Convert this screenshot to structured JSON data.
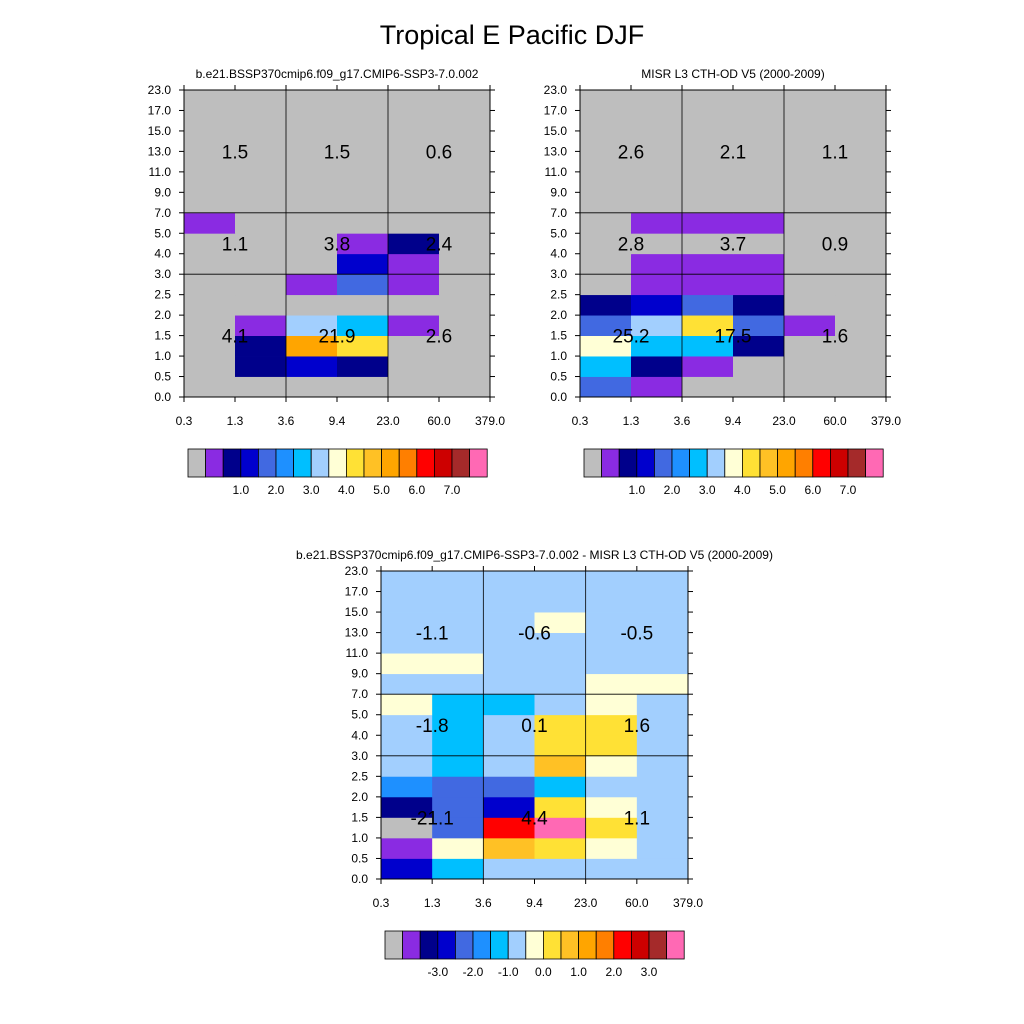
{
  "figure": {
    "title": "Tropical E Pacific DJF"
  },
  "palette": {
    "names": [
      "gray",
      "purple",
      "navy",
      "mediumblue",
      "royalblue",
      "dodgerblue",
      "deepskyblue",
      "lightskyblue",
      "lightyellow",
      "gold",
      "goldenrod",
      "orange",
      "darkorange",
      "red",
      "firebrick",
      "brown",
      "pink"
    ],
    "colors": [
      "#bebebe",
      "#8a2be2",
      "#00008b",
      "#0000cd",
      "#4169e1",
      "#1e90ff",
      "#00bfff",
      "#a2cffe",
      "#ffffd6",
      "#ffe135",
      "#ffc125",
      "#ffa500",
      "#ff7f00",
      "#ff0000",
      "#cd0000",
      "#a52a2a",
      "#ff69b4"
    ]
  },
  "axes": {
    "x_ticks": [
      "0.3",
      "1.3",
      "3.6",
      "9.4",
      "23.0",
      "60.0",
      "379.0"
    ],
    "y_ticks": [
      "0.0",
      "0.5",
      "1.0",
      "1.5",
      "2.0",
      "2.5",
      "3.0",
      "4.0",
      "5.0",
      "7.0",
      "9.0",
      "11.0",
      "13.0",
      "15.0",
      "17.0",
      "23.0"
    ]
  },
  "chart_data": [
    {
      "type": "heatmap",
      "title": "b.e21.BSSP370cmip6.f09_g17.CMIP6-SSP3-7.0.002",
      "x_bins": [
        "0.3",
        "1.3",
        "3.6",
        "9.4",
        "23.0",
        "60.0",
        "379.0"
      ],
      "y_bins": [
        "0.0",
        "0.5",
        "1.0",
        "1.5",
        "2.0",
        "2.5",
        "3.0",
        "4.0",
        "5.0",
        "7.0",
        "9.0",
        "11.0",
        "13.0",
        "15.0",
        "17.0",
        "23.0"
      ],
      "cells": [
        [
          0,
          0,
          0,
          0,
          0,
          0
        ],
        [
          0,
          2,
          3,
          2,
          0,
          0
        ],
        [
          0,
          2,
          11,
          9,
          0,
          0
        ],
        [
          0,
          1,
          7,
          6,
          1,
          0
        ],
        [
          0,
          0,
          0,
          0,
          0,
          0
        ],
        [
          0,
          0,
          1,
          4,
          1,
          0
        ],
        [
          0,
          0,
          0,
          3,
          1,
          0
        ],
        [
          0,
          0,
          0,
          1,
          2,
          0
        ],
        [
          1,
          0,
          0,
          0,
          0,
          0
        ],
        [
          0,
          0,
          0,
          0,
          0,
          0
        ],
        [
          0,
          0,
          0,
          0,
          0,
          0
        ],
        [
          0,
          0,
          0,
          0,
          0,
          0
        ],
        [
          0,
          0,
          0,
          0,
          0,
          0
        ],
        [
          0,
          0,
          0,
          0,
          0,
          0
        ],
        [
          0,
          0,
          0,
          0,
          0,
          0
        ]
      ],
      "group_totals": [
        [
          "1.5",
          "1.5",
          "0.6"
        ],
        [
          "1.1",
          "3.8",
          "2.4"
        ],
        [
          "4.1",
          "21.9",
          "2.6"
        ]
      ],
      "colorbar_labels": [
        "1.0",
        "2.0",
        "3.0",
        "4.0",
        "5.0",
        "6.0",
        "7.0"
      ]
    },
    {
      "type": "heatmap",
      "title": "MISR L3 CTH-OD V5 (2000-2009)",
      "x_bins": [
        "0.3",
        "1.3",
        "3.6",
        "9.4",
        "23.0",
        "60.0",
        "379.0"
      ],
      "y_bins": [
        "0.0",
        "0.5",
        "1.0",
        "1.5",
        "2.0",
        "2.5",
        "3.0",
        "4.0",
        "5.0",
        "7.0",
        "9.0",
        "11.0",
        "13.0",
        "15.0",
        "17.0",
        "23.0"
      ],
      "cells": [
        [
          4,
          1,
          0,
          0,
          0,
          0
        ],
        [
          6,
          2,
          1,
          0,
          0,
          0
        ],
        [
          8,
          6,
          6,
          2,
          0,
          0
        ],
        [
          4,
          7,
          9,
          4,
          1,
          0
        ],
        [
          2,
          3,
          4,
          2,
          0,
          0
        ],
        [
          0,
          1,
          1,
          1,
          0,
          0
        ],
        [
          0,
          1,
          1,
          1,
          0,
          0
        ],
        [
          0,
          0,
          0,
          0,
          0,
          0
        ],
        [
          0,
          1,
          1,
          1,
          0,
          0
        ],
        [
          0,
          0,
          0,
          0,
          0,
          0
        ],
        [
          0,
          0,
          0,
          0,
          0,
          0
        ],
        [
          0,
          0,
          0,
          0,
          0,
          0
        ],
        [
          0,
          0,
          0,
          0,
          0,
          0
        ],
        [
          0,
          0,
          0,
          0,
          0,
          0
        ],
        [
          0,
          0,
          0,
          0,
          0,
          0
        ]
      ],
      "group_totals": [
        [
          "2.6",
          "2.1",
          "1.1"
        ],
        [
          "2.8",
          "3.7",
          "0.9"
        ],
        [
          "25.2",
          "17.5",
          "1.6"
        ]
      ],
      "colorbar_labels": [
        "1.0",
        "2.0",
        "3.0",
        "4.0",
        "5.0",
        "6.0",
        "7.0"
      ]
    },
    {
      "type": "heatmap",
      "title": "b.e21.BSSP370cmip6.f09_g17.CMIP6-SSP3-7.0.002 - MISR L3 CTH-OD V5 (2000-2009)",
      "x_bins": [
        "0.3",
        "1.3",
        "3.6",
        "9.4",
        "23.0",
        "60.0",
        "379.0"
      ],
      "y_bins": [
        "0.0",
        "0.5",
        "1.0",
        "1.5",
        "2.0",
        "2.5",
        "3.0",
        "4.0",
        "5.0",
        "7.0",
        "9.0",
        "11.0",
        "13.0",
        "15.0",
        "17.0",
        "23.0"
      ],
      "cells": [
        [
          3,
          6,
          7,
          7,
          7,
          7
        ],
        [
          1,
          8,
          10,
          9,
          8,
          7
        ],
        [
          0,
          4,
          13,
          16,
          9,
          7
        ],
        [
          2,
          4,
          3,
          9,
          8,
          7
        ],
        [
          5,
          4,
          4,
          6,
          7,
          7
        ],
        [
          7,
          6,
          7,
          10,
          8,
          7
        ],
        [
          7,
          6,
          7,
          9,
          9,
          7
        ],
        [
          7,
          6,
          7,
          9,
          9,
          7
        ],
        [
          8,
          6,
          6,
          7,
          8,
          7
        ],
        [
          7,
          7,
          7,
          7,
          8,
          8
        ],
        [
          8,
          8,
          7,
          7,
          7,
          7
        ],
        [
          7,
          7,
          7,
          7,
          7,
          7
        ],
        [
          7,
          7,
          7,
          8,
          7,
          7
        ],
        [
          7,
          7,
          7,
          7,
          7,
          7
        ],
        [
          7,
          7,
          7,
          7,
          7,
          7
        ]
      ],
      "group_totals": [
        [
          "-1.1",
          "-0.6",
          "-0.5"
        ],
        [
          "-1.8",
          "0.1",
          "1.6"
        ],
        [
          "-21.1",
          "4.4",
          "1.1"
        ]
      ],
      "colorbar_labels": [
        "-3.0",
        "-2.0",
        "-1.0",
        "0.0",
        "1.0",
        "2.0",
        "3.0"
      ]
    }
  ]
}
